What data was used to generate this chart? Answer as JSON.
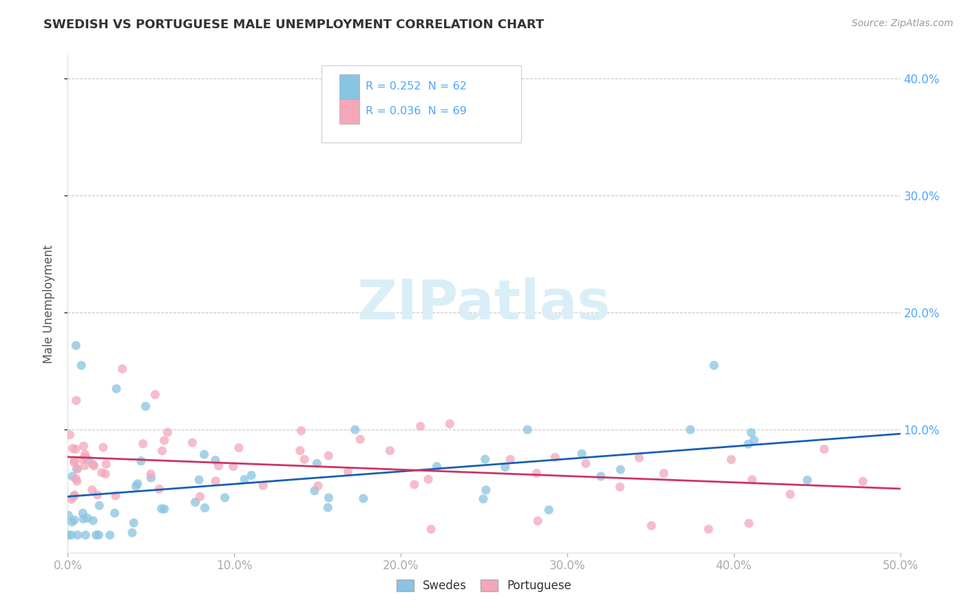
{
  "title": "SWEDISH VS PORTUGUESE MALE UNEMPLOYMENT CORRELATION CHART",
  "source": "Source: ZipAtlas.com",
  "ylabel": "Male Unemployment",
  "xlim": [
    0.0,
    0.5
  ],
  "ylim": [
    -0.005,
    0.42
  ],
  "xticks": [
    0.0,
    0.1,
    0.2,
    0.3,
    0.4,
    0.5
  ],
  "xticklabels": [
    "0.0%",
    "10.0%",
    "20.0%",
    "30.0%",
    "40.0%",
    "50.0%"
  ],
  "yticks": [
    0.1,
    0.2,
    0.3,
    0.4
  ],
  "yticklabels": [
    "10.0%",
    "20.0%",
    "30.0%",
    "40.0%"
  ],
  "swedes_color": "#89c4e1",
  "portuguese_color": "#f4a7b9",
  "swedes_line_color": "#1a5fb4",
  "portuguese_line_color": "#cc3366",
  "background_color": "#ffffff",
  "grid_color": "#c8c8c8",
  "title_color": "#333333",
  "axis_label_color": "#555555",
  "tick_color": "#4da6ff",
  "watermark_color": "#daeef8"
}
